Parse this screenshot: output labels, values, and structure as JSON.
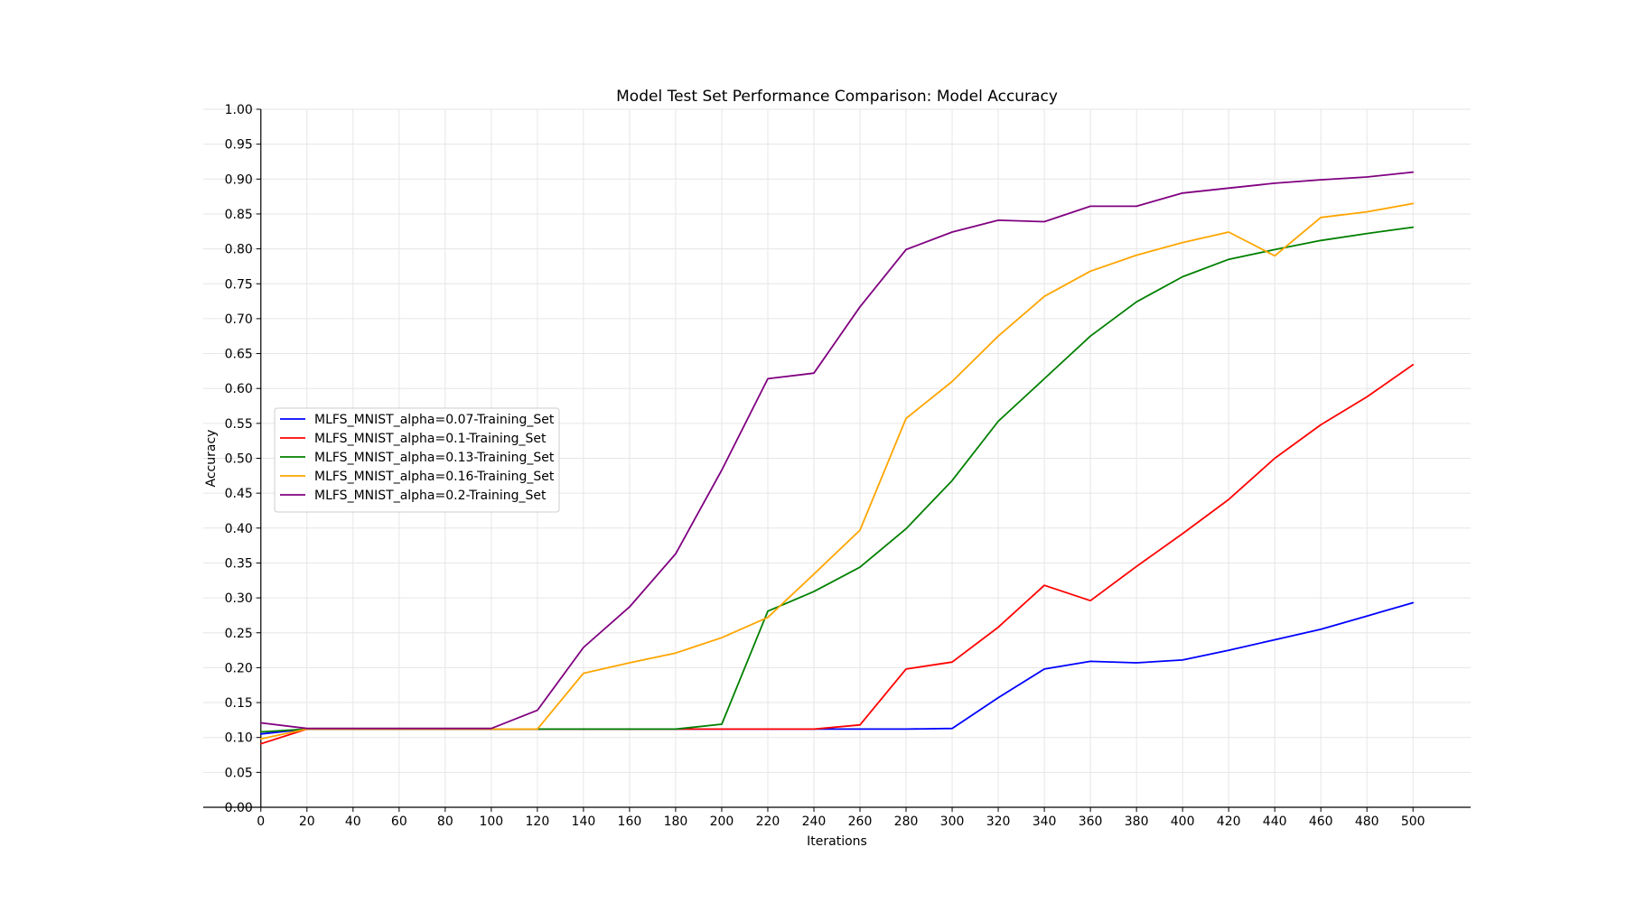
{
  "chart_data": {
    "type": "line",
    "title": "Model Test Set Performance Comparison: Model Accuracy",
    "xlabel": "Iterations",
    "ylabel": "Accuracy",
    "xlim": [
      -25,
      525
    ],
    "ylim": [
      0,
      1
    ],
    "x_ticks": [
      0,
      20,
      40,
      60,
      80,
      100,
      120,
      140,
      160,
      180,
      200,
      220,
      240,
      260,
      280,
      300,
      320,
      340,
      360,
      380,
      400,
      420,
      440,
      460,
      480,
      500
    ],
    "y_ticks": [
      "0.00",
      "0.05",
      "0.10",
      "0.15",
      "0.20",
      "0.25",
      "0.30",
      "0.35",
      "0.40",
      "0.45",
      "0.50",
      "0.55",
      "0.60",
      "0.65",
      "0.70",
      "0.75",
      "0.80",
      "0.85",
      "0.90",
      "0.95",
      "1.00"
    ],
    "grid": true,
    "legend_position": "center-left",
    "x": [
      0,
      20,
      40,
      60,
      80,
      100,
      120,
      140,
      160,
      180,
      200,
      220,
      240,
      260,
      280,
      300,
      320,
      340,
      360,
      380,
      400,
      420,
      440,
      460,
      480,
      500
    ],
    "series": [
      {
        "name": "MLFS_MNIST_alpha=0.07-Training_Set",
        "color": "#0000ff",
        "values": [
          0.105,
          0.112,
          0.112,
          0.112,
          0.112,
          0.112,
          0.112,
          0.112,
          0.112,
          0.112,
          0.112,
          0.112,
          0.112,
          0.112,
          0.112,
          0.113,
          0.157,
          0.198,
          0.209,
          0.207,
          0.211,
          0.225,
          0.24,
          0.255,
          0.274,
          0.293
        ]
      },
      {
        "name": "MLFS_MNIST_alpha=0.1-Training_Set",
        "color": "#ff0000",
        "values": [
          0.091,
          0.112,
          0.112,
          0.112,
          0.112,
          0.112,
          0.112,
          0.112,
          0.112,
          0.112,
          0.112,
          0.112,
          0.112,
          0.118,
          0.198,
          0.208,
          0.258,
          0.318,
          0.296,
          0.345,
          0.392,
          0.441,
          0.5,
          0.548,
          0.588,
          0.634
        ]
      },
      {
        "name": "MLFS_MNIST_alpha=0.13-Training_Set",
        "color": "#008000",
        "values": [
          0.108,
          0.112,
          0.112,
          0.112,
          0.112,
          0.112,
          0.112,
          0.112,
          0.112,
          0.112,
          0.119,
          0.281,
          0.309,
          0.344,
          0.399,
          0.468,
          0.553,
          0.614,
          0.675,
          0.724,
          0.76,
          0.785,
          0.799,
          0.812,
          0.822,
          0.831
        ]
      },
      {
        "name": "MLFS_MNIST_alpha=0.16-Training_Set",
        "color": "#ffa500",
        "values": [
          0.098,
          0.112,
          0.112,
          0.112,
          0.112,
          0.112,
          0.112,
          0.192,
          0.207,
          0.221,
          0.243,
          0.272,
          0.334,
          0.397,
          0.557,
          0.61,
          0.675,
          0.732,
          0.768,
          0.791,
          0.809,
          0.824,
          0.79,
          0.845,
          0.853,
          0.865
        ]
      },
      {
        "name": "MLFS_MNIST_alpha=0.2-Training_Set",
        "color": "#800080",
        "values": [
          0.121,
          0.113,
          0.113,
          0.113,
          0.113,
          0.113,
          0.139,
          0.229,
          0.287,
          0.363,
          0.483,
          0.614,
          0.622,
          0.717,
          0.799,
          0.824,
          0.841,
          0.839,
          0.861,
          0.861,
          0.88,
          0.887,
          0.894,
          0.899,
          0.903,
          0.91
        ]
      }
    ]
  }
}
